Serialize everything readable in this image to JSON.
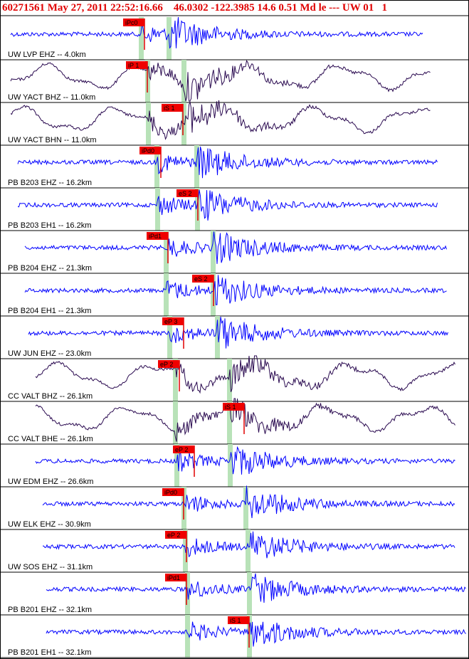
{
  "header": {
    "title": "60271561 May 27, 2011 22:52:16.66    46.0302 -122.3985 14.6 0.51 Md le --- UW 01   1"
  },
  "traces": [
    {
      "label": "UW LVP EHZ -- 4.0km",
      "pick": "iPc0"
    },
    {
      "label": "UW YACT BHZ -- 11.0km",
      "pick": "iP 1"
    },
    {
      "label": "UW YACT BHN -- 11.0km",
      "pick": "iS 1"
    },
    {
      "label": "PB B203 EHZ -- 16.2km",
      "pick": "iPd0"
    },
    {
      "label": "PB B203 EH1 -- 16.2km",
      "pick": "eS 2"
    },
    {
      "label": "PB B204 EHZ -- 21.3km",
      "pick": "iPd1"
    },
    {
      "label": "PB B204 EH1 -- 21.3km",
      "pick": "eS 2"
    },
    {
      "label": "UW JUN EHZ -- 23.0km",
      "pick": "eP 3"
    },
    {
      "label": "CC VALT BHZ -- 26.1km",
      "pick": "eP 2"
    },
    {
      "label": "CC VALT BHE -- 26.1km",
      "pick": "iS 1"
    },
    {
      "label": "UW EDM EHZ -- 26.6km",
      "pick": "eP 2"
    },
    {
      "label": "UW ELK EHZ -- 30.9km",
      "pick": "iPd0"
    },
    {
      "label": "UW SOS EHZ -- 31.1km",
      "pick": "eP 2"
    },
    {
      "label": "PB B201 EHZ -- 32.1km",
      "pick": "iPd1"
    },
    {
      "label": "PB B201 EH1 -- 32.1km",
      "pick": "iS 1"
    }
  ]
}
